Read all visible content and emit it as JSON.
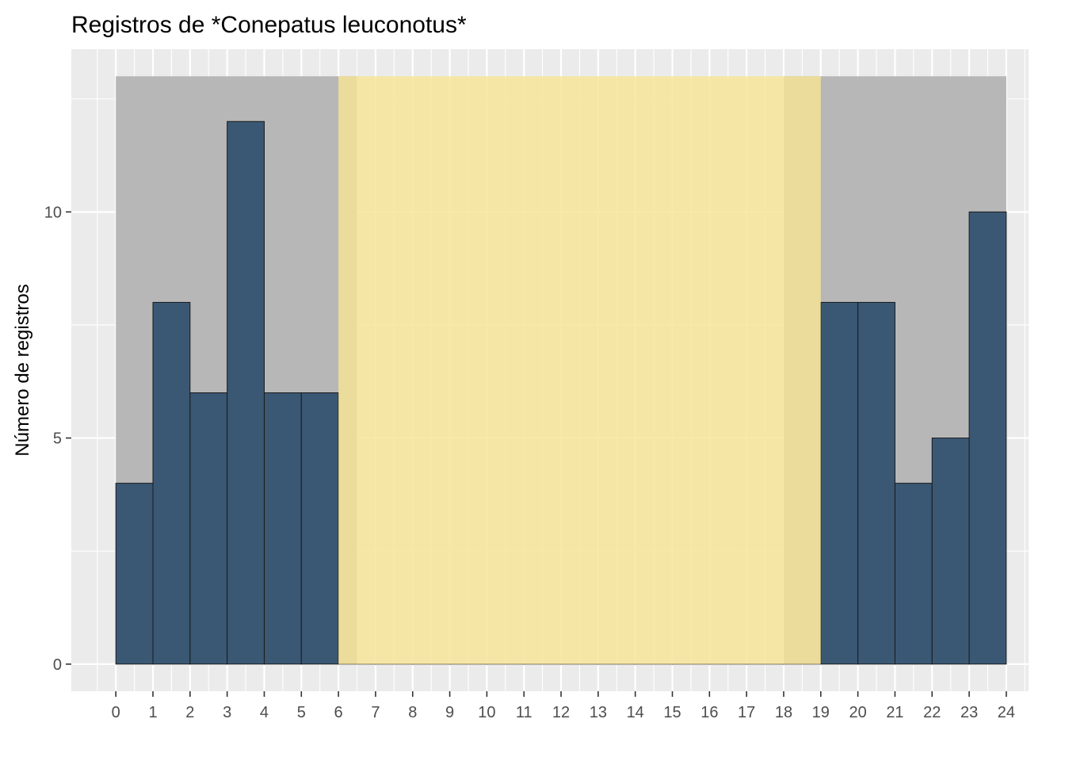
{
  "chart_data": {
    "type": "bar",
    "title": "Registros de *Conepatus leuconotus*",
    "xlabel": "",
    "ylabel": "Número de registros",
    "x_ticks": [
      "0",
      "1",
      "2",
      "3",
      "4",
      "5",
      "6",
      "7",
      "8",
      "9",
      "10",
      "11",
      "12",
      "13",
      "14",
      "15",
      "16",
      "17",
      "18",
      "19",
      "20",
      "21",
      "22",
      "23",
      "24"
    ],
    "y_ticks": [
      "0",
      "5",
      "10"
    ],
    "xlim": [
      -1.2,
      24.6
    ],
    "ylim": [
      -0.6,
      13.6
    ],
    "bins": [
      {
        "start": 0,
        "end": 1,
        "value": 4
      },
      {
        "start": 1,
        "end": 2,
        "value": 8
      },
      {
        "start": 2,
        "end": 3,
        "value": 6
      },
      {
        "start": 3,
        "end": 4,
        "value": 12
      },
      {
        "start": 4,
        "end": 5,
        "value": 6
      },
      {
        "start": 5,
        "end": 6,
        "value": 6
      },
      {
        "start": 6,
        "end": 7,
        "value": 0
      },
      {
        "start": 7,
        "end": 8,
        "value": 0
      },
      {
        "start": 8,
        "end": 9,
        "value": 0
      },
      {
        "start": 9,
        "end": 10,
        "value": 0
      },
      {
        "start": 10,
        "end": 11,
        "value": 0
      },
      {
        "start": 11,
        "end": 12,
        "value": 0
      },
      {
        "start": 12,
        "end": 13,
        "value": 0
      },
      {
        "start": 13,
        "end": 14,
        "value": 0
      },
      {
        "start": 14,
        "end": 15,
        "value": 0
      },
      {
        "start": 15,
        "end": 16,
        "value": 0
      },
      {
        "start": 16,
        "end": 17,
        "value": 0
      },
      {
        "start": 17,
        "end": 18,
        "value": 0
      },
      {
        "start": 18,
        "end": 19,
        "value": 0
      },
      {
        "start": 19,
        "end": 20,
        "value": 8
      },
      {
        "start": 20,
        "end": 21,
        "value": 8
      },
      {
        "start": 21,
        "end": 22,
        "value": 4
      },
      {
        "start": 22,
        "end": 23,
        "value": 5
      },
      {
        "start": 23,
        "end": 24,
        "value": 10
      }
    ],
    "shaded_bands": [
      {
        "kind": "night",
        "x_start": 0,
        "x_end": 6.5,
        "y_top": 13,
        "color": "#b7b7b7"
      },
      {
        "kind": "night",
        "x_start": 18,
        "x_end": 24,
        "y_top": 13,
        "color": "#b7b7b7"
      },
      {
        "kind": "day",
        "x_start": 6,
        "x_end": 19,
        "y_top": 13,
        "color": "#f7e495",
        "opacity": 0.82
      }
    ],
    "colors": {
      "panel_background": "#ebebeb",
      "grid": "#ffffff",
      "bar_fill": "#3a5874",
      "bar_outline": "#1a1a1a"
    },
    "grid": true,
    "legend": "none"
  }
}
